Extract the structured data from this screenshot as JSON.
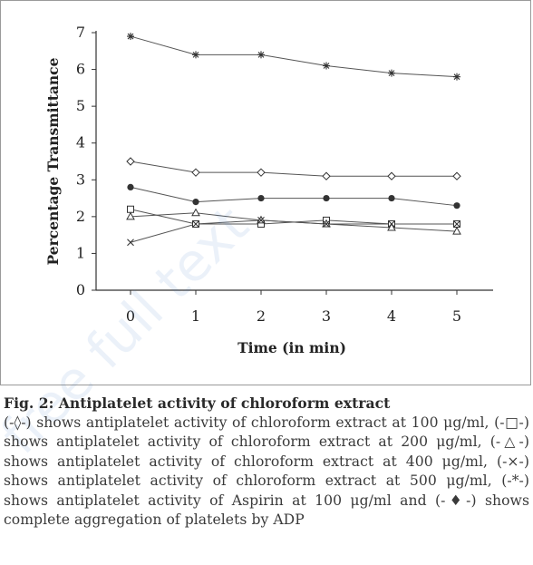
{
  "chart_data": {
    "type": "line",
    "title": "",
    "xlabel": "Time (in min)",
    "ylabel": "Percentage Transmittance",
    "x": [
      0,
      1,
      2,
      3,
      4,
      5
    ],
    "x_ticks": [
      "0",
      "1",
      "2",
      "3",
      "4",
      "5"
    ],
    "y_ticks": [
      "0",
      "1",
      "2",
      "3",
      "4",
      "5",
      "6",
      "7"
    ],
    "ylim": [
      0,
      7
    ],
    "grid": false,
    "legend": "none",
    "series": [
      {
        "marker": "asterisk",
        "values": [
          6.9,
          6.4,
          6.4,
          6.1,
          5.9,
          5.8
        ]
      },
      {
        "marker": "diamond-open",
        "values": [
          3.5,
          3.2,
          3.2,
          3.1,
          3.1,
          3.1
        ]
      },
      {
        "marker": "circle-filled",
        "values": [
          2.8,
          2.4,
          2.5,
          2.5,
          2.5,
          2.3
        ]
      },
      {
        "marker": "square-open",
        "values": [
          2.2,
          1.8,
          1.8,
          1.9,
          1.8,
          1.8
        ]
      },
      {
        "marker": "triangle-open",
        "values": [
          2.0,
          2.1,
          1.9,
          1.8,
          1.7,
          1.6
        ]
      },
      {
        "marker": "x",
        "values": [
          1.3,
          1.8,
          1.9,
          1.8,
          1.8,
          1.8
        ]
      }
    ],
    "colors": {
      "line": "#555555",
      "marker": "#333333"
    }
  },
  "caption": {
    "title": "Fig. 2: Antiplatelet activity of chloroform extract",
    "body": "(-◊-) shows antiplatelet activity of chloroform extract at 100 μg/ml, (-□-) shows antiplatelet activity of chloroform extract at 200 μg/ml, (-△-) shows antiplatelet activity of chloroform extract at 400 μg/ml, (-×-) shows antiplatelet activity of chloroform extract at 500 μg/ml, (-*-) shows antiplatelet activity of Aspirin at 100 μg/ml and (-♦-) shows complete aggregation of platelets by ADP"
  }
}
